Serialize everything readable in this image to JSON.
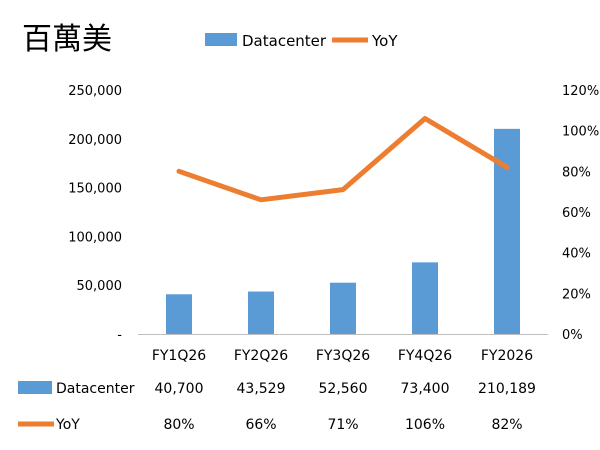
{
  "unit_label": "百萬美",
  "chart_data": {
    "type": "bar",
    "categories": [
      "FY1Q26",
      "FY2Q26",
      "FY3Q26",
      "FY4Q26",
      "FY2026"
    ],
    "series": [
      {
        "name": "Datacenter",
        "kind": "bar",
        "axis": "left",
        "color": "#5B9BD5",
        "values": [
          40700,
          43529,
          52560,
          73400,
          210189
        ],
        "labels": [
          "40,700",
          "43,529",
          "52,560",
          "73,400",
          "210,189"
        ]
      },
      {
        "name": "YoY",
        "kind": "line",
        "axis": "right",
        "color": "#ED7D31",
        "values": [
          80,
          66,
          71,
          106,
          82
        ],
        "labels": [
          "80%",
          "66%",
          "71%",
          "106%",
          "82%"
        ]
      }
    ],
    "y_left": {
      "ylim": [
        0,
        250000
      ],
      "ticks": [
        0,
        50000,
        100000,
        150000,
        200000,
        250000
      ],
      "tick_labels": [
        "-",
        "50,000",
        "100,000",
        "150,000",
        "200,000",
        "250,000"
      ]
    },
    "y_right": {
      "ylim": [
        0,
        120
      ],
      "ticks": [
        0,
        20,
        40,
        60,
        80,
        100,
        120
      ],
      "tick_labels": [
        "0%",
        "20%",
        "40%",
        "60%",
        "80%",
        "100%",
        "120%"
      ]
    },
    "legend_position": "top",
    "grid": false
  }
}
